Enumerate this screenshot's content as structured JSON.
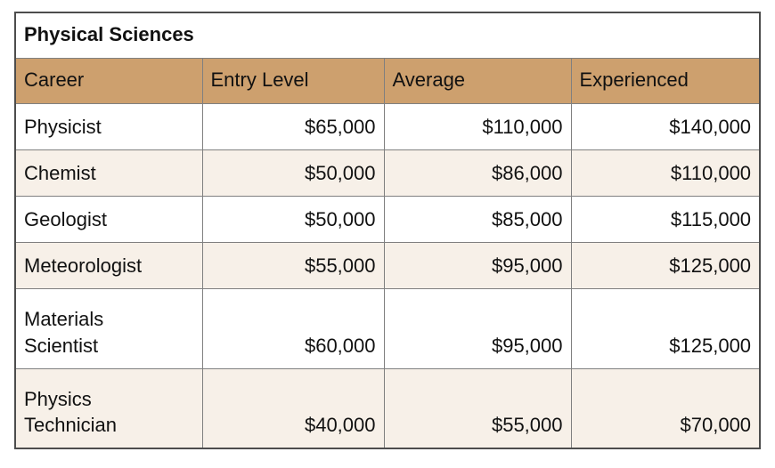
{
  "table": {
    "title": "Physical Sciences",
    "columns": {
      "career": "Career",
      "entry": "Entry Level",
      "average": "Average",
      "experienced": "Experienced"
    },
    "rows": [
      {
        "career": "Physicist",
        "entry": "$65,000",
        "average": "$110,000",
        "experienced": "$140,000"
      },
      {
        "career": "Chemist",
        "entry": "$50,000",
        "average": "$86,000",
        "experienced": "$110,000"
      },
      {
        "career": "Geologist",
        "entry": "$50,000",
        "average": "$85,000",
        "experienced": "$115,000"
      },
      {
        "career": "Meteorologist",
        "entry": "$55,000",
        "average": "$95,000",
        "experienced": "$125,000"
      },
      {
        "career": "Materials\nScientist",
        "entry": "$60,000",
        "average": "$95,000",
        "experienced": "$125,000"
      },
      {
        "career": "Physics\nTechnician",
        "entry": "$40,000",
        "average": "$55,000",
        "experienced": "$70,000"
      }
    ],
    "colors": {
      "header_bg": "#cda06e",
      "stripe_bg": "#f7f0e8",
      "grid_line": "#808080",
      "outer_border": "#4d4d4d",
      "text": "#111111"
    }
  },
  "chart_data": {
    "type": "table",
    "title": "Physical Sciences",
    "categories": [
      "Physicist",
      "Chemist",
      "Geologist",
      "Meteorologist",
      "Materials Scientist",
      "Physics Technician"
    ],
    "series": [
      {
        "name": "Entry Level",
        "values": [
          65000,
          50000,
          50000,
          55000,
          60000,
          40000
        ]
      },
      {
        "name": "Average",
        "values": [
          110000,
          86000,
          85000,
          95000,
          95000,
          55000
        ]
      },
      {
        "name": "Experienced",
        "values": [
          140000,
          110000,
          115000,
          125000,
          125000,
          70000
        ]
      }
    ],
    "value_format": "USD"
  }
}
